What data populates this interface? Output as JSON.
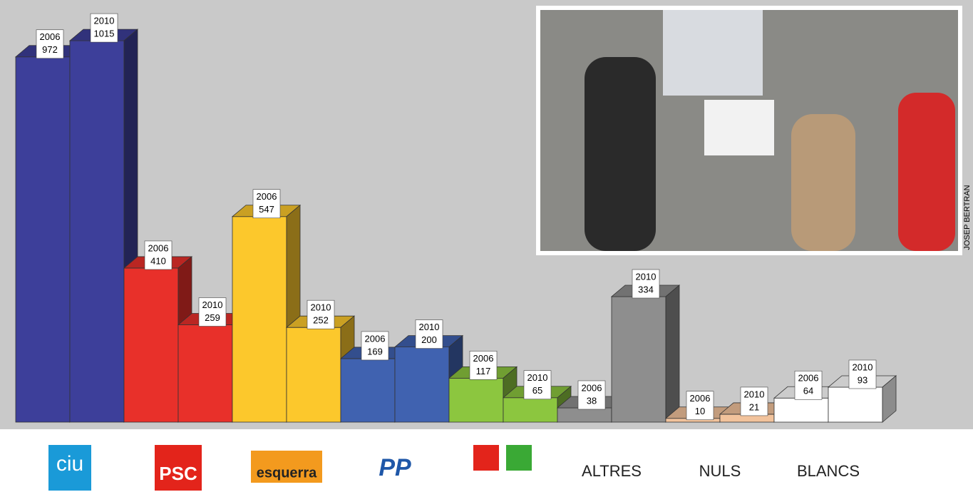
{
  "chart_data": {
    "type": "bar3d",
    "categories": [
      "ciu",
      "PSC",
      "esquerra",
      "PP",
      null,
      "ALTRES",
      "NULS",
      "BLANCS"
    ],
    "series": [
      {
        "name": "2006",
        "values": [
          972,
          410,
          547,
          169,
          117,
          38,
          10,
          64
        ]
      },
      {
        "name": "2010",
        "values": [
          1015,
          259,
          252,
          200,
          65,
          334,
          21,
          93
        ]
      }
    ],
    "colors": [
      "#3d3f9a",
      "#e8302a",
      "#fcc82c",
      "#4062b0",
      "#8cc63f",
      "#8e8e8e",
      "#f2c39c",
      "#ffffff"
    ],
    "photo_credit": "JOSEP BERTRAN"
  }
}
